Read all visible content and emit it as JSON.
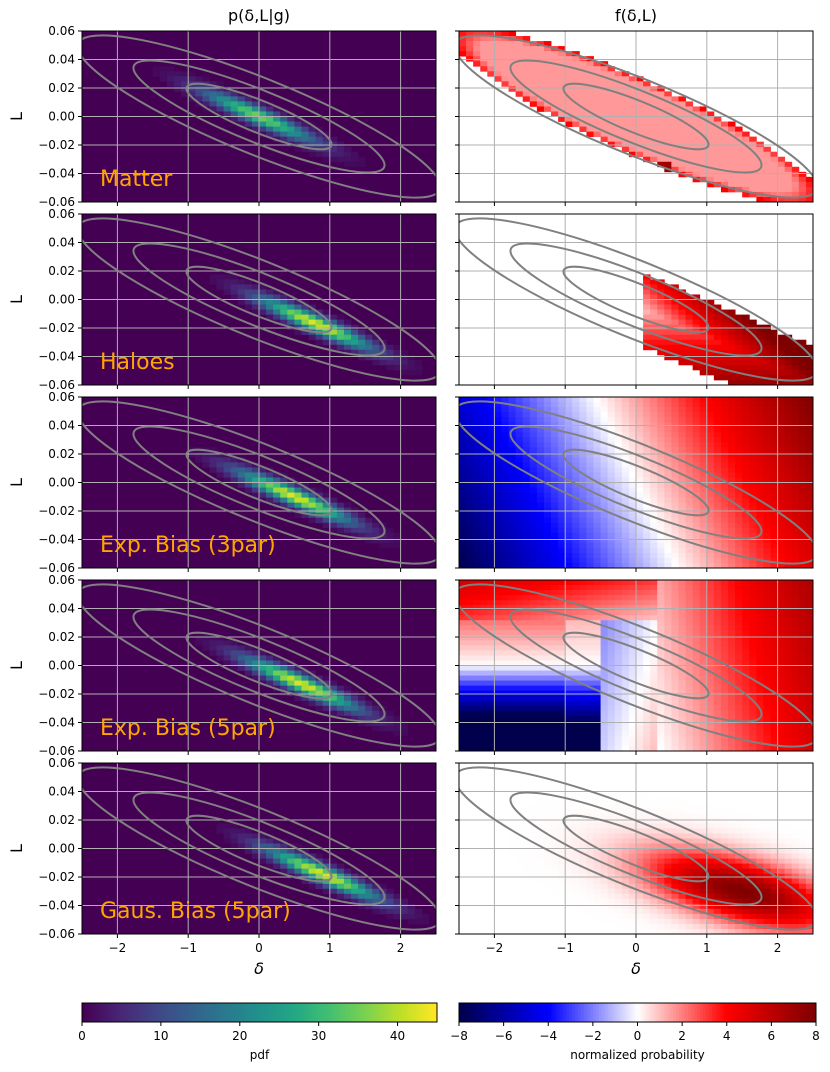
{
  "chart_data": {
    "type": "heatmap",
    "column_titles": [
      "p(δ,L|g)",
      "f(δ,L)"
    ],
    "xlabel": "δ",
    "ylabel": "L",
    "xlim": [
      -2.5,
      2.5
    ],
    "ylim": [
      -0.06,
      0.06
    ],
    "xticks": [
      -2,
      -1,
      0,
      1,
      2
    ],
    "xtick_labels": [
      "−2",
      "−1",
      "0",
      "1",
      "2"
    ],
    "yticks": [
      -0.06,
      -0.04,
      -0.02,
      0.0,
      0.02,
      0.04,
      0.06
    ],
    "ytick_labels": [
      "−0.06",
      "−0.04",
      "−0.02",
      "0.00",
      "0.02",
      "0.04",
      "0.06"
    ],
    "grid": true,
    "panels": [
      {
        "label": "Matter",
        "pdf_peak": {
          "delta": 0.0,
          "L": 0.0
        },
        "pdf_max": 45
      },
      {
        "label": "Haloes",
        "pdf_peak": {
          "delta": 0.8,
          "L": -0.017
        },
        "pdf_max": 45
      },
      {
        "label": "Exp. Bias (3par)",
        "pdf_peak": {
          "delta": 0.5,
          "L": -0.01
        },
        "pdf_max": 45
      },
      {
        "label": "Exp. Bias (5par)",
        "pdf_peak": {
          "delta": 0.6,
          "L": -0.013
        },
        "pdf_max": 45
      },
      {
        "label": "Gaus. Bias (5par)",
        "pdf_peak": {
          "delta": 0.9,
          "L": -0.018
        },
        "pdf_max": 45
      }
    ],
    "contours": {
      "center": {
        "delta": 0.0,
        "L": 0.0
      },
      "levels": 3,
      "description": "tilted elliptical contours of the matter distribution, shown on every panel"
    },
    "colorbars": [
      {
        "label": "pdf",
        "colormap": "viridis",
        "range": [
          0,
          45
        ],
        "ticks": [
          0,
          10,
          20,
          30,
          40
        ]
      },
      {
        "label": "normalized probability",
        "colormap": "seismic",
        "range": [
          -8,
          8
        ],
        "ticks": [
          -8,
          -6,
          -4,
          -2,
          0,
          2,
          4,
          6,
          8
        ],
        "tick_labels": [
          "−8",
          "−6",
          "−4",
          "−2",
          "0",
          "2",
          "4",
          "6",
          "8"
        ]
      }
    ],
    "contour_color": "#808080",
    "grid_color": "#b0b0b0",
    "label_color": "#FFA500"
  }
}
